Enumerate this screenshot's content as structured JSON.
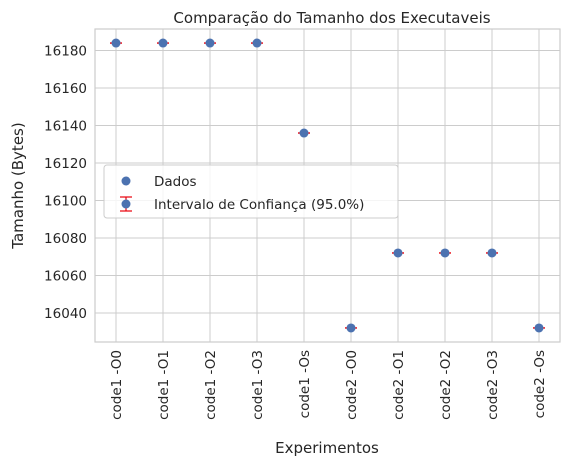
{
  "chart_data": {
    "type": "scatter",
    "title": "Comparação do Tamanho dos Executaveis",
    "xlabel": "Experimentos",
    "ylabel": "Tamanho (Bytes)",
    "categories": [
      "code1 -O0",
      "code1 -O1",
      "code1 -O2",
      "code1 -O3",
      "code1 -Os",
      "code2 -O0",
      "code2 -O1",
      "code2 -O2",
      "code2 -O3",
      "code2 -Os"
    ],
    "values": [
      16184,
      16184,
      16184,
      16184,
      16136,
      16032,
      16072,
      16072,
      16072,
      16032
    ],
    "ylim": [
      16024.5,
      16191.5
    ],
    "yticks": [
      16040,
      16060,
      16080,
      16100,
      16120,
      16140,
      16160,
      16180
    ],
    "grid": true,
    "legend": {
      "placement": "center-left",
      "entries": [
        "Dados",
        "Intervalo de Confiança (95.0%)"
      ]
    },
    "colors": {
      "marker": "#4c72b0",
      "errorbar": "#e8000b",
      "grid": "#cccccc",
      "axes": "#cccccc"
    }
  }
}
